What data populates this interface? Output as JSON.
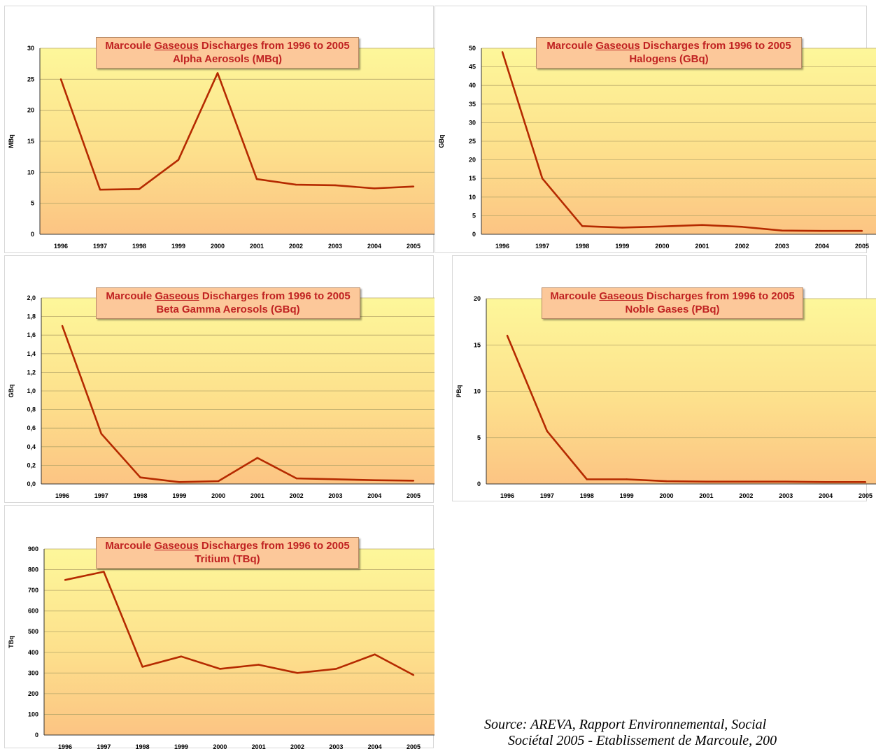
{
  "colors": {
    "line": "#b52a00",
    "title_text": "#c02222",
    "title_bg": "#fcc89a"
  },
  "charts": [
    {
      "title_prefix": "Marcoule ",
      "title_underlined": "Gaseous",
      "title_suffix": " Discharges from 1996 to 2005",
      "subtitle": "Alpha Aerosols (MBq)",
      "chart_data": {
        "type": "line",
        "categories": [
          "1996",
          "1997",
          "1998",
          "1999",
          "2000",
          "2001",
          "2002",
          "2003",
          "2004",
          "2005"
        ],
        "values": [
          25,
          7.2,
          7.3,
          12,
          26,
          8.9,
          8.0,
          7.9,
          7.4,
          7.7
        ],
        "ylabel": "MBq",
        "ylim": [
          0,
          30
        ],
        "yticks": [
          0,
          5,
          10,
          15,
          20,
          25,
          30
        ],
        "ytick_labels": [
          "0",
          "5",
          "10",
          "15",
          "20",
          "25",
          "30"
        ],
        "grid": true
      }
    },
    {
      "title_prefix": "Marcoule ",
      "title_underlined": "Gaseous",
      "title_suffix": " Discharges from 1996 to 2005",
      "subtitle": "Halogens (GBq)",
      "chart_data": {
        "type": "line",
        "categories": [
          "1996",
          "1997",
          "1998",
          "1999",
          "2000",
          "2001",
          "2002",
          "2003",
          "2004",
          "2005"
        ],
        "values": [
          49,
          15,
          2.2,
          1.8,
          2.1,
          2.5,
          2.0,
          1.0,
          0.9,
          0.9
        ],
        "ylabel": "GBq",
        "ylim": [
          0,
          50
        ],
        "yticks": [
          0,
          5,
          10,
          15,
          20,
          25,
          30,
          35,
          40,
          45,
          50
        ],
        "ytick_labels": [
          "0",
          "5",
          "10",
          "15",
          "20",
          "25",
          "30",
          "35",
          "40",
          "45",
          "50"
        ],
        "grid": true
      }
    },
    {
      "title_prefix": "Marcoule ",
      "title_underlined": "Gaseous",
      "title_suffix": " Discharges from 1996 to 2005",
      "subtitle": "Beta Gamma Aerosols (GBq)",
      "chart_data": {
        "type": "line",
        "categories": [
          "1996",
          "1997",
          "1998",
          "1999",
          "2000",
          "2001",
          "2002",
          "2003",
          "2004",
          "2005"
        ],
        "values": [
          1.7,
          0.54,
          0.07,
          0.02,
          0.03,
          0.28,
          0.06,
          0.05,
          0.04,
          0.035
        ],
        "ylabel": "GBq",
        "ylim": [
          0,
          2.0
        ],
        "yticks": [
          0,
          0.2,
          0.4,
          0.6,
          0.8,
          1.0,
          1.2,
          1.4,
          1.6,
          1.8,
          2.0
        ],
        "ytick_labels": [
          "0,0",
          "0,2",
          "0,4",
          "0,6",
          "0,8",
          "1,0",
          "1,2",
          "1,4",
          "1,6",
          "1,8",
          "2,0"
        ],
        "grid": true
      }
    },
    {
      "title_prefix": "Marcoule ",
      "title_underlined": "Gaseous",
      "title_suffix": " Discharges from 1996 to 2005",
      "subtitle": "Noble Gases (PBq)",
      "chart_data": {
        "type": "line",
        "categories": [
          "1996",
          "1997",
          "1998",
          "1999",
          "2000",
          "2001",
          "2002",
          "2003",
          "2004",
          "2005"
        ],
        "values": [
          16,
          5.7,
          0.5,
          0.5,
          0.3,
          0.25,
          0.25,
          0.25,
          0.2,
          0.2
        ],
        "ylabel": "PBq",
        "ylim": [
          0,
          20
        ],
        "yticks": [
          0,
          5,
          10,
          15,
          20
        ],
        "ytick_labels": [
          "0",
          "5",
          "10",
          "15",
          "20"
        ],
        "grid": true
      }
    },
    {
      "title_prefix": "Marcoule ",
      "title_underlined": "Gaseous",
      "title_suffix": " Discharges from 1996 to 2005",
      "subtitle": "Tritium (TBq)",
      "chart_data": {
        "type": "line",
        "categories": [
          "1996",
          "1997",
          "1998",
          "1999",
          "2000",
          "2001",
          "2002",
          "2003",
          "2004",
          "2005"
        ],
        "values": [
          750,
          790,
          330,
          380,
          320,
          340,
          300,
          320,
          390,
          290
        ],
        "ylabel": "TBq",
        "ylim": [
          0,
          900
        ],
        "yticks": [
          0,
          100,
          200,
          300,
          400,
          500,
          600,
          700,
          800,
          900
        ],
        "ytick_labels": [
          "0",
          "100",
          "200",
          "300",
          "400",
          "500",
          "600",
          "700",
          "800",
          "900"
        ],
        "grid": true
      }
    }
  ],
  "source": {
    "line1": "Source: AREVA, Rapport Environnemental, Social",
    "line2": "Sociétal 2005 - Etablissement de Marcoule, 200"
  }
}
